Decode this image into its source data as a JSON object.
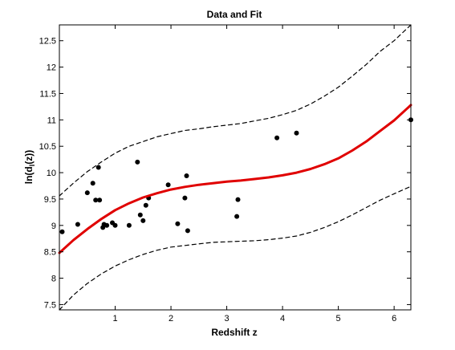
{
  "chart_data": {
    "type": "scatter",
    "title": "Data and Fit",
    "xlabel": "Redshift z",
    "ylabel": "ln(d_l(z))",
    "ylabel_main": "ln(d",
    "ylabel_sub": "l",
    "ylabel_tail": "(z))",
    "xlim": [
      0.0,
      6.3
    ],
    "ylim": [
      7.4,
      12.8
    ],
    "x_ticks": [
      1,
      2,
      3,
      4,
      5,
      6
    ],
    "y_ticks": [
      7.5,
      8,
      8.5,
      9,
      9.5,
      10,
      10.5,
      11,
      11.5,
      12,
      12.5
    ],
    "grid": false,
    "series": [
      {
        "kind": "points",
        "color": "#000000",
        "x": [
          0.05,
          0.33,
          0.5,
          0.6,
          0.65,
          0.7,
          0.72,
          0.78,
          0.8,
          0.85,
          0.95,
          1.0,
          1.25,
          1.4,
          1.45,
          1.5,
          1.55,
          1.6,
          1.95,
          2.12,
          2.25,
          2.28,
          2.3,
          3.18,
          3.2,
          3.9,
          4.25,
          6.3
        ],
        "y": [
          8.88,
          9.02,
          9.62,
          9.8,
          9.48,
          10.1,
          9.48,
          8.96,
          9.02,
          9.0,
          9.05,
          9.0,
          9.0,
          10.2,
          9.2,
          9.09,
          9.38,
          9.52,
          9.77,
          9.03,
          9.52,
          9.94,
          8.9,
          9.17,
          9.49,
          10.66,
          10.75,
          11.0
        ]
      },
      {
        "kind": "fit",
        "color": "#e00000",
        "x": [
          0.0,
          0.25,
          0.5,
          0.75,
          1.0,
          1.25,
          1.5,
          1.75,
          2.0,
          2.25,
          2.5,
          2.75,
          3.0,
          3.25,
          3.5,
          3.75,
          4.0,
          4.25,
          4.5,
          4.75,
          5.0,
          5.25,
          5.5,
          5.75,
          6.0,
          6.3
        ],
        "y": [
          8.48,
          8.72,
          8.93,
          9.12,
          9.29,
          9.42,
          9.53,
          9.61,
          9.68,
          9.73,
          9.77,
          9.8,
          9.83,
          9.85,
          9.88,
          9.91,
          9.95,
          10.0,
          10.07,
          10.16,
          10.27,
          10.42,
          10.59,
          10.79,
          10.99,
          11.28
        ]
      },
      {
        "kind": "upper-bound",
        "color": "#000000",
        "x": [
          0.0,
          0.25,
          0.5,
          0.75,
          1.0,
          1.25,
          1.5,
          1.75,
          2.0,
          2.25,
          2.5,
          2.75,
          3.0,
          3.25,
          3.5,
          3.75,
          4.0,
          4.25,
          4.5,
          4.75,
          5.0,
          5.25,
          5.5,
          5.75,
          6.0,
          6.3
        ],
        "y": [
          9.56,
          9.8,
          10.02,
          10.2,
          10.37,
          10.5,
          10.59,
          10.68,
          10.74,
          10.8,
          10.83,
          10.87,
          10.9,
          10.93,
          10.98,
          11.03,
          11.1,
          11.18,
          11.3,
          11.45,
          11.62,
          11.83,
          12.05,
          12.3,
          12.5,
          12.8
        ]
      },
      {
        "kind": "lower-bound",
        "color": "#000000",
        "x": [
          0.0,
          0.25,
          0.5,
          0.75,
          1.0,
          1.25,
          1.5,
          1.75,
          2.0,
          2.25,
          2.5,
          2.75,
          3.0,
          3.25,
          3.5,
          3.75,
          4.0,
          4.25,
          4.5,
          4.75,
          5.0,
          5.25,
          5.5,
          5.75,
          6.0,
          6.3
        ],
        "y": [
          7.4,
          7.68,
          7.9,
          8.08,
          8.23,
          8.35,
          8.45,
          8.53,
          8.59,
          8.62,
          8.65,
          8.68,
          8.69,
          8.7,
          8.71,
          8.73,
          8.76,
          8.8,
          8.87,
          8.96,
          9.07,
          9.2,
          9.34,
          9.48,
          9.6,
          9.74
        ]
      }
    ]
  }
}
